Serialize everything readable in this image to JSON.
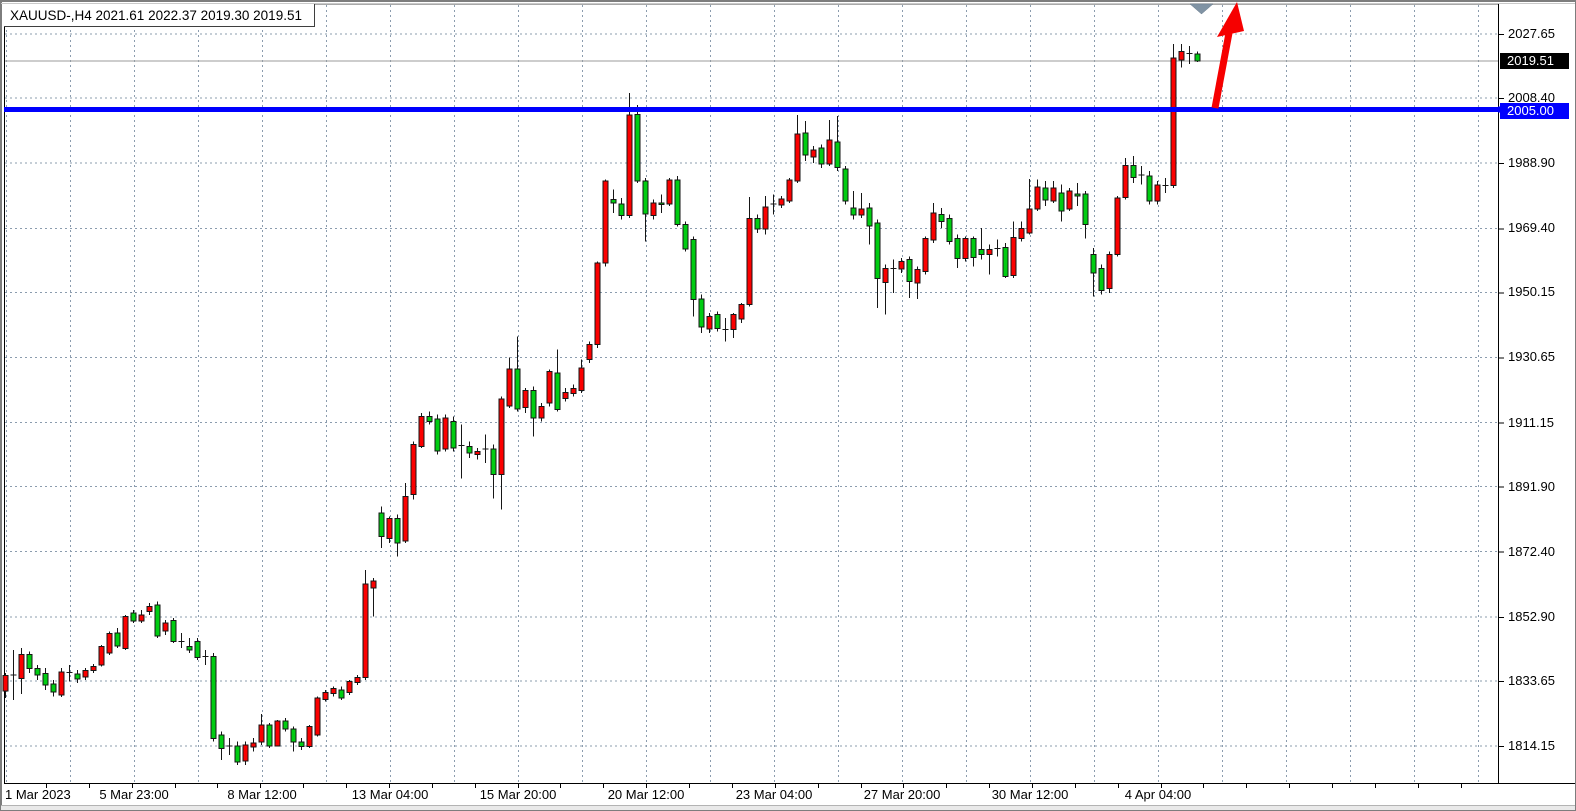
{
  "window": {
    "title": "XAUUSD-,H4  2021.61 2022.37 2019.30 2019.51"
  },
  "chart_data": {
    "type": "candlestick",
    "symbol": "XAUUSD-",
    "timeframe": "H4",
    "title": "XAUUSD-,H4",
    "ohlc_display": {
      "open": "2021.61",
      "high": "2022.37",
      "low": "2019.30",
      "close": "2019.51"
    },
    "current_price": 2019.51,
    "horizontal_line_price": 2005.0,
    "current_price_tag": {
      "text": "2019.51",
      "bg": "#000000"
    },
    "hline_tag": {
      "text": "2005.00",
      "bg": "#0000fe"
    },
    "price_axis_labels": [
      "2027.65",
      "2008.40",
      "1988.90",
      "1969.40",
      "1950.15",
      "1930.65",
      "1911.15",
      "1891.90",
      "1872.40",
      "1852.90",
      "1833.65",
      "1814.15"
    ],
    "y_gridlines": [
      2027.65,
      2008.4,
      1988.9,
      1969.4,
      1950.15,
      1930.65,
      1911.15,
      1891.9,
      1872.4,
      1852.9,
      1833.65,
      1814.15
    ],
    "time_labels": [
      "1 Mar 2023",
      "5 Mar 23:00",
      "8 Mar 12:00",
      "13 Mar 04:00",
      "15 Mar 20:00",
      "20 Mar 12:00",
      "23 Mar 04:00",
      "27 Mar 20:00",
      "30 Mar 12:00",
      "4 Apr 04:00"
    ],
    "ylim": [
      1806,
      2031
    ],
    "grid": "dashed both axes",
    "candles": [
      [
        1830.6,
        1836.0,
        1828.5,
        1835.3
      ],
      [
        1835.3,
        1843.0,
        1828.0,
        1835.5
      ],
      [
        1834.4,
        1843.5,
        1829.7,
        1841.6
      ],
      [
        1841.6,
        1842.5,
        1836.0,
        1837.4
      ],
      [
        1837.4,
        1838.5,
        1834.0,
        1835.4
      ],
      [
        1835.9,
        1837.5,
        1831.0,
        1832.5
      ],
      [
        1832.8,
        1834.0,
        1829.0,
        1830.4
      ],
      [
        1829.5,
        1837.5,
        1828.8,
        1836.4
      ],
      [
        1836.4,
        1838.5,
        1833.5,
        1836.2
      ],
      [
        1835.8,
        1837.0,
        1833.0,
        1834.3
      ],
      [
        1834.9,
        1837.5,
        1834.0,
        1836.8
      ],
      [
        1836.8,
        1838.8,
        1836.0,
        1838.0
      ],
      [
        1838.5,
        1844.5,
        1838.0,
        1844.0
      ],
      [
        1842.0,
        1848.5,
        1841.5,
        1847.9
      ],
      [
        1848.0,
        1849.5,
        1843.5,
        1844.2
      ],
      [
        1843.4,
        1853.5,
        1843.0,
        1853.0
      ],
      [
        1854.0,
        1855.0,
        1851.0,
        1851.6
      ],
      [
        1851.6,
        1855.0,
        1851.0,
        1853.4
      ],
      [
        1854.4,
        1857.0,
        1853.5,
        1856.0
      ],
      [
        1856.4,
        1857.5,
        1846.5,
        1847.2
      ],
      [
        1848.6,
        1852.0,
        1847.5,
        1851.0
      ],
      [
        1851.8,
        1852.5,
        1845.0,
        1845.4
      ],
      [
        1845.4,
        1848.0,
        1843.5,
        1845.5
      ],
      [
        1844.0,
        1846.5,
        1842.0,
        1843.0
      ],
      [
        1845.5,
        1846.5,
        1840.0,
        1840.7
      ],
      [
        1840.7,
        1843.0,
        1838.5,
        1841.0
      ],
      [
        1841.0,
        1842.0,
        1815.5,
        1816.4
      ],
      [
        1817.5,
        1818.5,
        1810.0,
        1813.4
      ],
      [
        1814.0,
        1816.5,
        1811.5,
        1814.2
      ],
      [
        1814.2,
        1815.5,
        1808.5,
        1809.4
      ],
      [
        1809.6,
        1815.5,
        1808.5,
        1814.5
      ],
      [
        1813.9,
        1816.5,
        1812.5,
        1815.0
      ],
      [
        1815.3,
        1823.7,
        1814.5,
        1820.4
      ],
      [
        1820.4,
        1821.0,
        1813.5,
        1814.1
      ],
      [
        1814.1,
        1822.0,
        1814.0,
        1821.6
      ],
      [
        1821.6,
        1822.5,
        1818.5,
        1819.2
      ],
      [
        1819.2,
        1820.0,
        1812.5,
        1815.3
      ],
      [
        1815.3,
        1816.5,
        1813.0,
        1814.0
      ],
      [
        1814.0,
        1820.5,
        1813.5,
        1820.0
      ],
      [
        1817.5,
        1829.0,
        1817.0,
        1828.6
      ],
      [
        1828.1,
        1831.0,
        1827.5,
        1830.2
      ],
      [
        1829.9,
        1832.0,
        1829.0,
        1831.4
      ],
      [
        1831.0,
        1832.0,
        1828.0,
        1828.6
      ],
      [
        1830.2,
        1834.0,
        1829.5,
        1833.5
      ],
      [
        1833.2,
        1835.5,
        1832.5,
        1834.7
      ],
      [
        1834.7,
        1867.0,
        1834.0,
        1862.7
      ],
      [
        1861.6,
        1864.5,
        1853.0,
        1863.6
      ],
      [
        1884.0,
        1886.0,
        1873.5,
        1877.0
      ],
      [
        1876.4,
        1883.0,
        1875.0,
        1882.4
      ],
      [
        1882.4,
        1883.5,
        1871.0,
        1875.0
      ],
      [
        1875.6,
        1893.0,
        1875.0,
        1889.0
      ],
      [
        1889.6,
        1905.5,
        1888.0,
        1904.6
      ],
      [
        1904.0,
        1914.0,
        1903.5,
        1913.0
      ],
      [
        1913.0,
        1914.5,
        1910.5,
        1911.5
      ],
      [
        1912.2,
        1913.5,
        1901.5,
        1902.6
      ],
      [
        1903.2,
        1913.5,
        1902.5,
        1912.5
      ],
      [
        1911.5,
        1913.0,
        1902.5,
        1903.5
      ],
      [
        1904.0,
        1910.6,
        1894.4,
        1904.2
      ],
      [
        1904.0,
        1905.5,
        1900.5,
        1902.0
      ],
      [
        1901.6,
        1903.5,
        1900.0,
        1902.5
      ],
      [
        1903.0,
        1907.5,
        1899.0,
        1903.2
      ],
      [
        1903.2,
        1904.5,
        1888.4,
        1895.6
      ],
      [
        1895.6,
        1919.0,
        1885.0,
        1918.2
      ],
      [
        1916.1,
        1930.7,
        1915.5,
        1927.2
      ],
      [
        1927.2,
        1937.0,
        1914.5,
        1915.2
      ],
      [
        1915.7,
        1921.5,
        1914.0,
        1920.8
      ],
      [
        1920.8,
        1922.0,
        1907.0,
        1912.5
      ],
      [
        1912.5,
        1917.0,
        1911.5,
        1916.0
      ],
      [
        1917.0,
        1927.0,
        1916.0,
        1926.5
      ],
      [
        1926.0,
        1933.0,
        1914.5,
        1915.0
      ],
      [
        1918.4,
        1921.5,
        1917.5,
        1920.2
      ],
      [
        1919.9,
        1922.5,
        1919.0,
        1921.4
      ],
      [
        1920.8,
        1930.0,
        1920.0,
        1927.5
      ],
      [
        1930.0,
        1935.5,
        1929.0,
        1934.6
      ],
      [
        1934.6,
        1959.5,
        1933.5,
        1959.0
      ],
      [
        1959.0,
        1984.0,
        1958.0,
        1983.6
      ],
      [
        1978.0,
        1981.0,
        1974.0,
        1977.0
      ],
      [
        1976.6,
        1978.5,
        1972.0,
        1973.2
      ],
      [
        1973.2,
        2009.9,
        1972.5,
        2003.3
      ],
      [
        2003.5,
        2006.4,
        1983.0,
        1983.6
      ],
      [
        1983.6,
        1984.5,
        1965.5,
        1973.6
      ],
      [
        1973.2,
        1978.0,
        1972.0,
        1977.0
      ],
      [
        1977.0,
        1979.5,
        1974.0,
        1976.5
      ],
      [
        1976.6,
        1984.5,
        1976.0,
        1983.9
      ],
      [
        1983.9,
        1985.0,
        1970.0,
        1970.5
      ],
      [
        1970.6,
        1971.5,
        1962.5,
        1963.2
      ],
      [
        1966.0,
        1967.0,
        1943.0,
        1948.0
      ],
      [
        1948.2,
        1949.5,
        1938.0,
        1939.8
      ],
      [
        1939.2,
        1944.0,
        1938.0,
        1943.0
      ],
      [
        1943.5,
        1944.5,
        1938.5,
        1939.4
      ],
      [
        1939.0,
        1942.5,
        1935.5,
        1939.0
      ],
      [
        1939.0,
        1944.0,
        1936.5,
        1943.5
      ],
      [
        1942.2,
        1947.0,
        1941.0,
        1946.6
      ],
      [
        1946.6,
        1978.7,
        1946.0,
        1972.4
      ],
      [
        1972.4,
        1973.5,
        1968.0,
        1969.2
      ],
      [
        1969.2,
        1979.0,
        1967.5,
        1975.8
      ],
      [
        1976.7,
        1979.5,
        1973.5,
        1976.7
      ],
      [
        1976.4,
        1979.0,
        1975.5,
        1978.2
      ],
      [
        1977.6,
        1984.5,
        1977.0,
        1983.9
      ],
      [
        1983.6,
        2003.4,
        1983.0,
        1997.7
      ],
      [
        1998.0,
        2001.5,
        1989.5,
        1991.3
      ],
      [
        1990.7,
        1994.0,
        1989.0,
        1992.8
      ],
      [
        1993.4,
        1994.5,
        1987.5,
        1988.6
      ],
      [
        1988.6,
        2001.9,
        1988.0,
        1995.8
      ],
      [
        1995.2,
        2003.0,
        1986.5,
        1987.6
      ],
      [
        1987.1,
        1988.0,
        1976.5,
        1977.6
      ],
      [
        1975.5,
        1980.5,
        1972.0,
        1973.4
      ],
      [
        1973.4,
        1980.0,
        1972.5,
        1975.2
      ],
      [
        1975.5,
        1977.0,
        1964.5,
        1970.0
      ],
      [
        1971.0,
        1972.0,
        1945.5,
        1954.3
      ],
      [
        1953.1,
        1958.5,
        1943.5,
        1957.3
      ],
      [
        1957.3,
        1960.0,
        1950.0,
        1957.3
      ],
      [
        1957.2,
        1960.5,
        1956.0,
        1959.5
      ],
      [
        1960.0,
        1961.0,
        1948.5,
        1953.4
      ],
      [
        1953.0,
        1958.0,
        1948.2,
        1957.0
      ],
      [
        1956.4,
        1967.0,
        1955.5,
        1966.3
      ],
      [
        1965.8,
        1977.0,
        1965.0,
        1974.0
      ],
      [
        1973.5,
        1975.5,
        1969.5,
        1971.4
      ],
      [
        1972.3,
        1973.5,
        1964.5,
        1965.4
      ],
      [
        1966.3,
        1967.5,
        1957.5,
        1960.4
      ],
      [
        1960.4,
        1967.0,
        1959.5,
        1966.3
      ],
      [
        1966.3,
        1967.0,
        1958.0,
        1960.7
      ],
      [
        1963.0,
        1969.5,
        1960.0,
        1961.6
      ],
      [
        1961.6,
        1964.5,
        1955.5,
        1963.0
      ],
      [
        1963.4,
        1966.0,
        1961.0,
        1963.4
      ],
      [
        1963.7,
        1965.0,
        1954.5,
        1955.0
      ],
      [
        1955.3,
        1971.4,
        1954.5,
        1966.6
      ],
      [
        1966.3,
        1971.5,
        1965.5,
        1969.4
      ],
      [
        1968.0,
        1984.2,
        1967.5,
        1975.2
      ],
      [
        1975.2,
        1984.0,
        1974.5,
        1981.8
      ],
      [
        1981.5,
        1983.5,
        1976.0,
        1977.9
      ],
      [
        1977.6,
        1983.6,
        1977.0,
        1981.5
      ],
      [
        1980.0,
        1982.5,
        1971.5,
        1974.6
      ],
      [
        1975.2,
        1981.5,
        1974.5,
        1980.6
      ],
      [
        1979.6,
        1983.0,
        1976.0,
        1979.0
      ],
      [
        1979.6,
        1980.5,
        1966.4,
        1970.5
      ],
      [
        1961.6,
        1963.5,
        1949.0,
        1956.0
      ],
      [
        1957.3,
        1958.5,
        1949.6,
        1950.7
      ],
      [
        1951.3,
        1962.5,
        1950.0,
        1961.6
      ],
      [
        1961.6,
        1979.0,
        1961.0,
        1978.5
      ],
      [
        1978.6,
        1990.4,
        1978.0,
        1988.2
      ],
      [
        1988.2,
        1991.0,
        1983.0,
        1984.6
      ],
      [
        1985.0,
        1988.0,
        1982.5,
        1985.3
      ],
      [
        1985.0,
        1986.5,
        1976.5,
        1977.5
      ],
      [
        1977.6,
        1983.5,
        1976.5,
        1982.4
      ],
      [
        1982.0,
        1984.5,
        1980.0,
        1982.2
      ],
      [
        1982.2,
        2024.6,
        1981.5,
        2020.4
      ],
      [
        2019.9,
        2024.6,
        2017.6,
        2022.4
      ],
      [
        2021.6,
        2024.0,
        2018.6,
        2021.8
      ],
      [
        2021.61,
        2022.37,
        2019.3,
        2019.51
      ]
    ],
    "colors": {
      "bull_body": "#fb0000",
      "bear_body": "#00cd12",
      "candle_border": "#161616",
      "wick": "#161616",
      "grid": "#8b9cae",
      "hline": "#0000fe",
      "current_price_line": "#9b9b9b",
      "arrow": "#f60000",
      "top_marker": "#8093a4"
    },
    "annotations": [
      {
        "name": "trend-arrow",
        "type": "arrow-up",
        "color": "#f60000"
      },
      {
        "name": "period-marker",
        "type": "triangle-down",
        "color": "#8093a4"
      }
    ],
    "note": "bullish candles are red, bearish candles are green in this color scheme"
  }
}
